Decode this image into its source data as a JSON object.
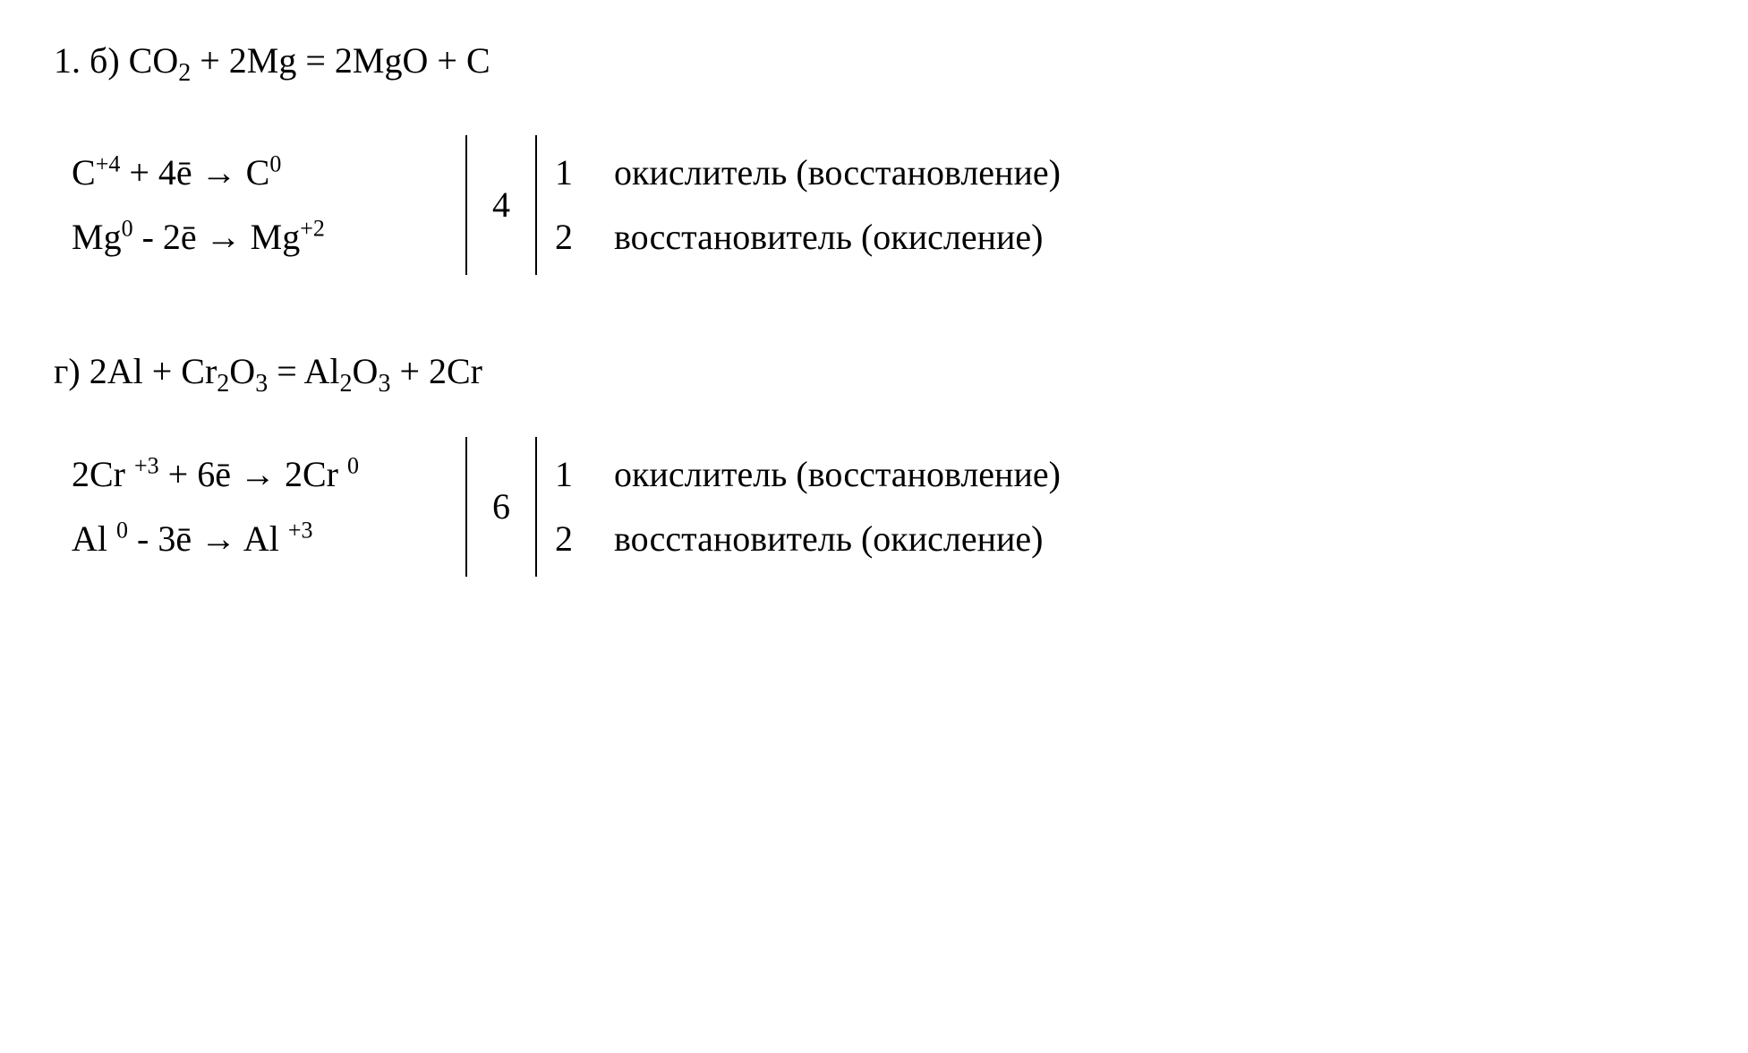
{
  "problem_number": "1.",
  "sections": [
    {
      "letter": "б)",
      "equation_tokens": [
        {
          "t": "CO"
        },
        {
          "t": "2",
          "cls": "sub"
        },
        {
          "t": " + 2Mg = 2MgO + C"
        }
      ],
      "lcm": "4",
      "half_reactions": [
        {
          "tokens": [
            {
              "t": "C"
            },
            {
              "t": "+4",
              "cls": "sup"
            },
            {
              "t": " + 4ē "
            },
            {
              "t": "→",
              "cls": "arrow"
            },
            {
              "t": " C"
            },
            {
              "t": "0",
              "cls": "sup"
            }
          ],
          "coef": "1",
          "label": "окислитель (восстановление)"
        },
        {
          "tokens": [
            {
              "t": "Mg"
            },
            {
              "t": "0",
              "cls": "sup"
            },
            {
              "t": " - 2ē "
            },
            {
              "t": "→",
              "cls": "arrow"
            },
            {
              "t": " Mg"
            },
            {
              "t": "+2",
              "cls": "sup"
            }
          ],
          "coef": "2",
          "label": "восстановитель (окисление)"
        }
      ]
    },
    {
      "letter": "г)",
      "equation_tokens": [
        {
          "t": "2Al + Cr"
        },
        {
          "t": "2",
          "cls": "sub"
        },
        {
          "t": "O"
        },
        {
          "t": "3",
          "cls": "sub"
        },
        {
          "t": " = Al"
        },
        {
          "t": "2",
          "cls": "sub"
        },
        {
          "t": "O"
        },
        {
          "t": "3",
          "cls": "sub"
        },
        {
          "t": " + 2Cr"
        }
      ],
      "lcm": "6",
      "half_reactions": [
        {
          "tokens": [
            {
              "t": "2Cr "
            },
            {
              "t": "+3",
              "cls": "sup"
            },
            {
              "t": " + 6ē "
            },
            {
              "t": "→",
              "cls": "arrow"
            },
            {
              "t": " 2Cr "
            },
            {
              "t": "0",
              "cls": "sup"
            }
          ],
          "coef": "1",
          "label": "окислитель (восстановление)"
        },
        {
          "tokens": [
            {
              "t": "Al "
            },
            {
              "t": "0",
              "cls": "sup"
            },
            {
              "t": " - 3ē "
            },
            {
              "t": "→",
              "cls": "arrow"
            },
            {
              "t": " Al "
            },
            {
              "t": "+3",
              "cls": "sup"
            }
          ],
          "coef": "2",
          "label": "восстановитель (окисление)"
        }
      ]
    }
  ]
}
